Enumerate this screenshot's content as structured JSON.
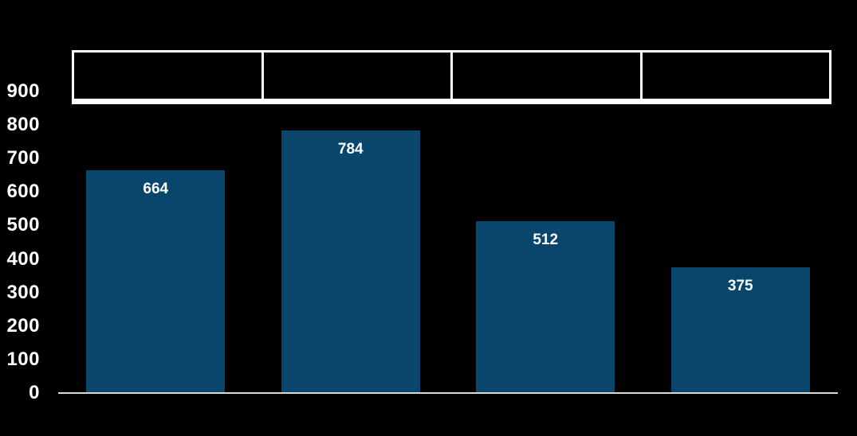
{
  "colors": {
    "background": "#000000",
    "bar_fill": "#0a466b",
    "axis_line": "#d9d9d9",
    "tick_label": "#ffffff",
    "data_label": "#ffffff",
    "table_border": "#ffffff"
  },
  "header_table": {
    "cells": [
      "",
      "",
      "",
      ""
    ]
  },
  "chart_data": {
    "type": "bar",
    "title": "",
    "xlabel": "",
    "ylabel": "",
    "categories": [
      "",
      "",
      "",
      ""
    ],
    "values": [
      664,
      784,
      512,
      375
    ],
    "data_labels": [
      "664",
      "784",
      "512",
      "375"
    ],
    "ylim": [
      0,
      900
    ],
    "yticks": [
      0,
      100,
      200,
      300,
      400,
      500,
      600,
      700,
      800,
      900
    ],
    "grid": false,
    "legend": false,
    "data_label_position": "inside-top"
  }
}
